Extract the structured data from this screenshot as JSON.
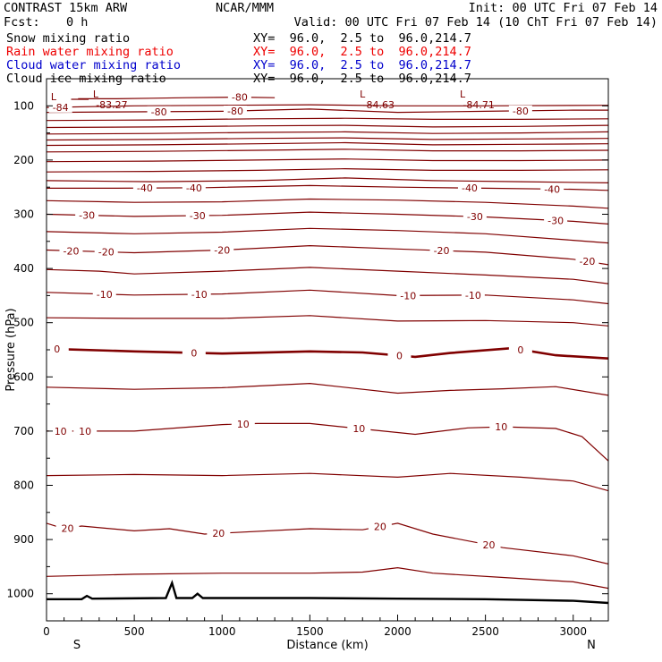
{
  "header": {
    "title_left": "CONTRAST 15km ARW",
    "source": "NCAR/MMM",
    "init": "Init: 00 UTC Fri 07 Feb 14",
    "fcst_label": "Fcst:",
    "fcst_value": "0 h",
    "valid": "Valid: 00 UTC Fri 07 Feb 14 (10 ChT Fri 07 Feb 14)"
  },
  "fields": [
    {
      "name": "Snow mixing ratio",
      "xy": "XY=  96.0,  2.5 to  96.0,214.7",
      "color": "#000000"
    },
    {
      "name": "Rain water mixing ratio",
      "xy": "XY=  96.0,  2.5 to  96.0,214.7",
      "color": "#ee0000"
    },
    {
      "name": "Cloud water mixing ratio",
      "xy": "XY=  96.0,  2.5 to  96.0,214.7",
      "color": "#0000cc"
    },
    {
      "name": "Cloud ice mixing ratio",
      "xy": "XY=  96.0,  2.5 to  96.0,214.7",
      "color": "#000000"
    }
  ],
  "chart_data": {
    "type": "line",
    "xlabel": "Distance (km)",
    "ylabel": "Pressure (hPa)",
    "xlim": [
      0,
      3200
    ],
    "ylim": [
      1050,
      50
    ],
    "xticks": [
      0,
      500,
      1000,
      1500,
      2000,
      2500,
      3000
    ],
    "yticks": [
      100,
      200,
      300,
      400,
      500,
      600,
      700,
      800,
      900,
      1000
    ],
    "x_end_labels": {
      "left": "S",
      "right": "N"
    },
    "contour_color": "#800000",
    "terrain_color": "#000000",
    "lows": [
      {
        "x": 0,
        "p": 90,
        "label": "L"
      },
      {
        "x": 280,
        "p": 85,
        "label": "L",
        "value": "-83.27"
      },
      {
        "x": 1800,
        "p": 85,
        "label": "L",
        "value": "-84.63"
      },
      {
        "x": 2370,
        "p": 85,
        "label": "L",
        "value": "-84.71"
      }
    ],
    "isotherms": [
      {
        "value": -84,
        "labels": [
          {
            "x": 80,
            "text": "-84"
          }
        ],
        "points": [
          [
            0,
            103
          ],
          [
            500,
            100
          ],
          [
            1000,
            99
          ],
          [
            1500,
            98
          ],
          [
            2000,
            100
          ],
          [
            2500,
            100
          ],
          [
            3200,
            99
          ]
        ]
      },
      {
        "value": -80,
        "labels": [
          {
            "x": 640,
            "text": "-80"
          },
          {
            "x": 1075,
            "text": "-80"
          },
          {
            "x": 2700,
            "text": "-80"
          }
        ],
        "points": [
          [
            0,
            112
          ],
          [
            500,
            111
          ],
          [
            1000,
            110
          ],
          [
            1500,
            106
          ],
          [
            2000,
            112
          ],
          [
            2500,
            110
          ],
          [
            3000,
            108
          ],
          [
            3200,
            108
          ]
        ]
      },
      {
        "value": -80,
        "labels": [
          {
            "x": 1100,
            "text": "-80"
          }
        ],
        "points": [
          [
            180,
            87
          ],
          [
            400,
            87
          ],
          [
            600,
            86
          ],
          [
            800,
            85
          ],
          [
            1100,
            84
          ],
          [
            1300,
            85
          ]
        ]
      },
      {
        "value": -80,
        "labels": [],
        "points": [
          [
            140,
            88
          ],
          [
            240,
            88
          ]
        ]
      },
      {
        "value": -76,
        "labels": [],
        "points": [
          [
            0,
            127
          ],
          [
            600,
            126
          ],
          [
            1200,
            124
          ],
          [
            1700,
            123
          ],
          [
            2200,
            125
          ],
          [
            2700,
            125
          ],
          [
            3200,
            124
          ]
        ]
      },
      {
        "value": -72,
        "labels": [],
        "points": [
          [
            0,
            140
          ],
          [
            600,
            139
          ],
          [
            1200,
            137
          ],
          [
            1700,
            136
          ],
          [
            2200,
            139
          ],
          [
            2700,
            138
          ],
          [
            3200,
            136
          ]
        ]
      },
      {
        "value": -68,
        "labels": [],
        "points": [
          [
            0,
            152
          ],
          [
            600,
            151
          ],
          [
            1200,
            149
          ],
          [
            1700,
            148
          ],
          [
            2200,
            151
          ],
          [
            2700,
            150
          ],
          [
            3200,
            148
          ]
        ]
      },
      {
        "value": -64,
        "labels": [],
        "points": [
          [
            0,
            163
          ],
          [
            600,
            162
          ],
          [
            1200,
            160
          ],
          [
            1700,
            159
          ],
          [
            2200,
            162
          ],
          [
            2700,
            161
          ],
          [
            3200,
            160
          ]
        ]
      },
      {
        "value": -60,
        "labels": [],
        "points": [
          [
            0,
            173
          ],
          [
            600,
            172
          ],
          [
            1200,
            170
          ],
          [
            1700,
            168
          ],
          [
            2200,
            172
          ],
          [
            2700,
            171
          ],
          [
            3200,
            170
          ]
        ]
      },
      {
        "value": -56,
        "labels": [],
        "points": [
          [
            0,
            185
          ],
          [
            600,
            184
          ],
          [
            1200,
            182
          ],
          [
            1700,
            180
          ],
          [
            2200,
            183
          ],
          [
            2700,
            183
          ],
          [
            3200,
            182
          ]
        ]
      },
      {
        "value": -52,
        "labels": [],
        "points": [
          [
            0,
            203
          ],
          [
            600,
            202
          ],
          [
            1200,
            200
          ],
          [
            1700,
            198
          ],
          [
            2200,
            201
          ],
          [
            2700,
            201
          ],
          [
            3200,
            200
          ]
        ]
      },
      {
        "value": -48,
        "labels": [],
        "points": [
          [
            0,
            222
          ],
          [
            600,
            221
          ],
          [
            1200,
            219
          ],
          [
            1700,
            216
          ],
          [
            2200,
            219
          ],
          [
            2700,
            219
          ],
          [
            3200,
            218
          ]
        ]
      },
      {
        "value": -44,
        "labels": [],
        "points": [
          [
            0,
            238
          ],
          [
            600,
            240
          ],
          [
            1200,
            238
          ],
          [
            1700,
            233
          ],
          [
            2200,
            238
          ],
          [
            2700,
            240
          ],
          [
            3200,
            242
          ]
        ]
      },
      {
        "value": -40,
        "labels": [
          {
            "x": 560,
            "text": "-40"
          },
          {
            "x": 840,
            "text": "-40"
          },
          {
            "x": 2410,
            "text": "-40"
          },
          {
            "x": 2880,
            "text": "-40"
          }
        ],
        "points": [
          [
            0,
            252
          ],
          [
            400,
            252
          ],
          [
            900,
            251
          ],
          [
            1500,
            247
          ],
          [
            2000,
            250
          ],
          [
            2500,
            252
          ],
          [
            3000,
            254
          ],
          [
            3200,
            256
          ]
        ]
      },
      {
        "value": -35,
        "labels": [],
        "points": [
          [
            0,
            275
          ],
          [
            500,
            278
          ],
          [
            1000,
            277
          ],
          [
            1500,
            272
          ],
          [
            2000,
            274
          ],
          [
            2500,
            278
          ],
          [
            3000,
            285
          ],
          [
            3200,
            289
          ]
        ]
      },
      {
        "value": -30,
        "labels": [
          {
            "x": 230,
            "text": "-30"
          },
          {
            "x": 860,
            "text": "-30"
          },
          {
            "x": 2440,
            "text": "-30"
          },
          {
            "x": 2900,
            "text": "-30"
          }
        ],
        "points": [
          [
            0,
            300
          ],
          [
            500,
            304
          ],
          [
            1000,
            302
          ],
          [
            1500,
            296
          ],
          [
            2000,
            300
          ],
          [
            2500,
            305
          ],
          [
            3000,
            313
          ],
          [
            3200,
            318
          ]
        ]
      },
      {
        "value": -25,
        "labels": [],
        "points": [
          [
            0,
            332
          ],
          [
            500,
            336
          ],
          [
            1000,
            333
          ],
          [
            1500,
            326
          ],
          [
            2000,
            330
          ],
          [
            2500,
            336
          ],
          [
            3000,
            348
          ],
          [
            3200,
            353
          ]
        ]
      },
      {
        "value": -20,
        "labels": [
          {
            "x": 140,
            "text": "-20"
          },
          {
            "x": 340,
            "text": "-20"
          },
          {
            "x": 1000,
            "text": "-20"
          },
          {
            "x": 2250,
            "text": "-20"
          },
          {
            "x": 3080,
            "text": "-20"
          }
        ],
        "points": [
          [
            0,
            366
          ],
          [
            500,
            371
          ],
          [
            1000,
            366
          ],
          [
            1500,
            358
          ],
          [
            2000,
            364
          ],
          [
            2500,
            370
          ],
          [
            3000,
            383
          ],
          [
            3200,
            393
          ]
        ]
      },
      {
        "value": -15,
        "labels": [],
        "points": [
          [
            0,
            402
          ],
          [
            300,
            405
          ],
          [
            500,
            410
          ],
          [
            1000,
            405
          ],
          [
            1500,
            398
          ],
          [
            2000,
            405
          ],
          [
            2500,
            412
          ],
          [
            3000,
            420
          ],
          [
            3200,
            428
          ]
        ]
      },
      {
        "value": -10,
        "labels": [
          {
            "x": 330,
            "text": "-10"
          },
          {
            "x": 870,
            "text": "-10"
          },
          {
            "x": 2060,
            "text": "-10"
          },
          {
            "x": 2430,
            "text": "-10"
          }
        ],
        "points": [
          [
            0,
            444
          ],
          [
            500,
            449
          ],
          [
            1000,
            447
          ],
          [
            1500,
            440
          ],
          [
            2000,
            450
          ],
          [
            2500,
            449
          ],
          [
            3000,
            458
          ],
          [
            3200,
            465
          ]
        ]
      },
      {
        "value": -5,
        "labels": [],
        "points": [
          [
            0,
            491
          ],
          [
            500,
            492
          ],
          [
            1000,
            492
          ],
          [
            1500,
            487
          ],
          [
            2000,
            497
          ],
          [
            2500,
            496
          ],
          [
            3000,
            500
          ],
          [
            3200,
            506
          ]
        ]
      },
      {
        "value": 0,
        "bold": true,
        "labels": [
          {
            "x": 60,
            "text": "0"
          },
          {
            "x": 840,
            "text": "0"
          },
          {
            "x": 2010,
            "text": "0"
          },
          {
            "x": 2700,
            "text": "0"
          }
        ],
        "points": [
          [
            0,
            548
          ],
          [
            500,
            553
          ],
          [
            1000,
            557
          ],
          [
            1500,
            553
          ],
          [
            1800,
            555
          ],
          [
            2100,
            563
          ],
          [
            2300,
            556
          ],
          [
            2650,
            547
          ],
          [
            2900,
            560
          ],
          [
            3200,
            566
          ]
        ]
      },
      {
        "value": 5,
        "labels": [],
        "points": [
          [
            0,
            619
          ],
          [
            500,
            623
          ],
          [
            1000,
            620
          ],
          [
            1500,
            612
          ],
          [
            2000,
            630
          ],
          [
            2300,
            625
          ],
          [
            2600,
            622
          ],
          [
            2900,
            618
          ],
          [
            3200,
            634
          ]
        ]
      },
      {
        "value": 10,
        "labels": [
          {
            "x": 80,
            "text": "10"
          },
          {
            "x": 220,
            "text": "10"
          },
          {
            "x": 1120,
            "text": "10"
          },
          {
            "x": 1780,
            "text": "10"
          },
          {
            "x": 2590,
            "text": "10"
          }
        ],
        "points": [
          [
            0,
            700
          ],
          [
            500,
            700
          ],
          [
            1000,
            688
          ],
          [
            1200,
            686
          ],
          [
            1500,
            686
          ],
          [
            1800,
            696
          ],
          [
            2100,
            706
          ],
          [
            2400,
            694
          ],
          [
            2600,
            692
          ],
          [
            2900,
            695
          ],
          [
            3050,
            710
          ],
          [
            3200,
            755
          ]
        ]
      },
      {
        "value": 15,
        "labels": [],
        "points": [
          [
            0,
            782
          ],
          [
            500,
            780
          ],
          [
            1000,
            782
          ],
          [
            1500,
            778
          ],
          [
            2000,
            785
          ],
          [
            2300,
            778
          ],
          [
            2700,
            785
          ],
          [
            3000,
            792
          ],
          [
            3200,
            810
          ]
        ]
      },
      {
        "value": 20,
        "labels": [
          {
            "x": 120,
            "text": "20"
          },
          {
            "x": 980,
            "text": "20"
          },
          {
            "x": 1900,
            "text": "20"
          },
          {
            "x": 2520,
            "text": "20"
          }
        ],
        "points": [
          [
            0,
            870
          ],
          [
            100,
            880
          ],
          [
            200,
            875
          ],
          [
            500,
            884
          ],
          [
            700,
            880
          ],
          [
            900,
            890
          ],
          [
            1500,
            880
          ],
          [
            1800,
            882
          ],
          [
            2000,
            870
          ],
          [
            2200,
            890
          ],
          [
            2600,
            915
          ],
          [
            3000,
            930
          ],
          [
            3200,
            945
          ]
        ]
      },
      {
        "value": 25,
        "labels": [],
        "points": [
          [
            0,
            968
          ],
          [
            500,
            964
          ],
          [
            1000,
            962
          ],
          [
            1500,
            962
          ],
          [
            1800,
            960
          ],
          [
            2000,
            952
          ],
          [
            2200,
            962
          ],
          [
            2600,
            970
          ],
          [
            3000,
            978
          ],
          [
            3200,
            990
          ]
        ]
      }
    ],
    "terrain": [
      [
        0,
        1010
      ],
      [
        200,
        1010
      ],
      [
        230,
        1004
      ],
      [
        260,
        1009
      ],
      [
        680,
        1008
      ],
      [
        715,
        980
      ],
      [
        740,
        1008
      ],
      [
        830,
        1008
      ],
      [
        860,
        1000
      ],
      [
        890,
        1008
      ],
      [
        1500,
        1008
      ],
      [
        2000,
        1009
      ],
      [
        2500,
        1010
      ],
      [
        3000,
        1013
      ],
      [
        3200,
        1017
      ]
    ]
  }
}
